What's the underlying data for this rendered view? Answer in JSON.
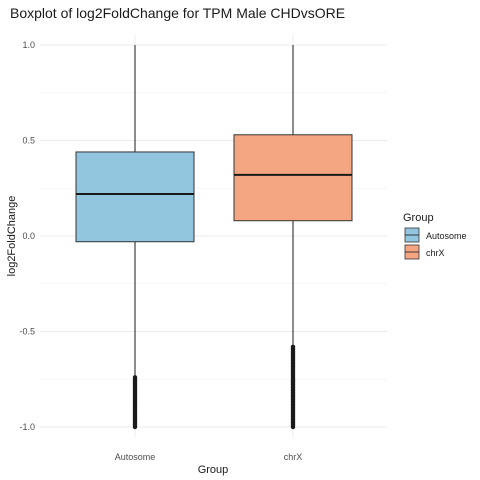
{
  "chart_data": {
    "type": "boxplot",
    "title": "Boxplot of log2FoldChange for TPM Male CHDvsORE",
    "xlabel": "Group",
    "ylabel": "log2FoldChange",
    "ylim": [
      -1.05,
      1.0
    ],
    "y_ticks": [
      -1.0,
      -0.5,
      0.0,
      0.5,
      1.0
    ],
    "y_tick_labels": [
      "-1.0",
      "-0.5",
      "0.0",
      "0.5",
      "1.0"
    ],
    "grid": true,
    "legend": {
      "title": "Group",
      "position": "right"
    },
    "categories": [
      "Autosome",
      "chrX"
    ],
    "series": [
      {
        "name": "Autosome",
        "color": "#92C5DE",
        "whisker_low": -0.73,
        "q1": -0.03,
        "median": 0.22,
        "q3": 0.44,
        "whisker_high": 1.0,
        "outlier_range": [
          -1.0,
          -0.74
        ]
      },
      {
        "name": "chrX",
        "color": "#F4A582",
        "whisker_low": -0.57,
        "q1": 0.08,
        "median": 0.32,
        "q3": 0.53,
        "whisker_high": 1.0,
        "outlier_range": [
          -1.0,
          -0.58
        ]
      }
    ]
  }
}
